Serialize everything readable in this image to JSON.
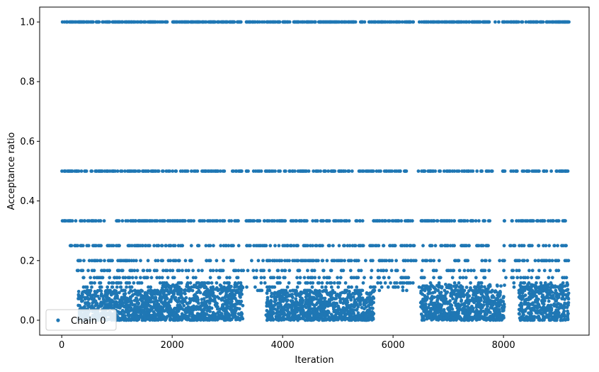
{
  "chart_data": {
    "type": "scatter",
    "title": "",
    "xlabel": "Iteration",
    "ylabel": "Acceptance ratio",
    "xlim": [
      -400,
      9550
    ],
    "ylim": [
      -0.05,
      1.05
    ],
    "x_ticks": [
      0,
      2000,
      4000,
      6000,
      8000
    ],
    "x_tick_labels": [
      "0",
      "2000",
      "4000",
      "6000",
      "8000"
    ],
    "y_ticks": [
      0.0,
      0.2,
      0.4,
      0.6,
      0.8,
      1.0
    ],
    "y_tick_labels": [
      "0.0",
      "0.2",
      "0.4",
      "0.6",
      "0.8",
      "1.0"
    ],
    "grid": false,
    "legend": {
      "position": "lower-left",
      "entries": [
        "Chain 0"
      ]
    },
    "marker_color": "#1f77b4",
    "n_iterations": 9200,
    "discrete_levels": [
      1.0,
      0.5,
      0.3333,
      0.25,
      0.2,
      0.1667,
      0.1429,
      0.125,
      0.1111,
      0.1
    ],
    "dense_low_value_clusters": [
      {
        "x_range": [
          300,
          1800
        ],
        "y_range": [
          0.0,
          0.1
        ]
      },
      {
        "x_range": [
          1800,
          3280
        ],
        "y_range": [
          0.0,
          0.12
        ]
      },
      {
        "x_range": [
          3700,
          5650
        ],
        "y_range": [
          0.0,
          0.1
        ]
      },
      {
        "x_range": [
          6500,
          8020
        ],
        "y_range": [
          0.0,
          0.12
        ]
      },
      {
        "x_range": [
          8280,
          9180
        ],
        "y_range": [
          0.0,
          0.12
        ]
      }
    ],
    "series": [
      {
        "name": "Chain 0",
        "x_range": [
          0,
          9180
        ]
      }
    ]
  }
}
